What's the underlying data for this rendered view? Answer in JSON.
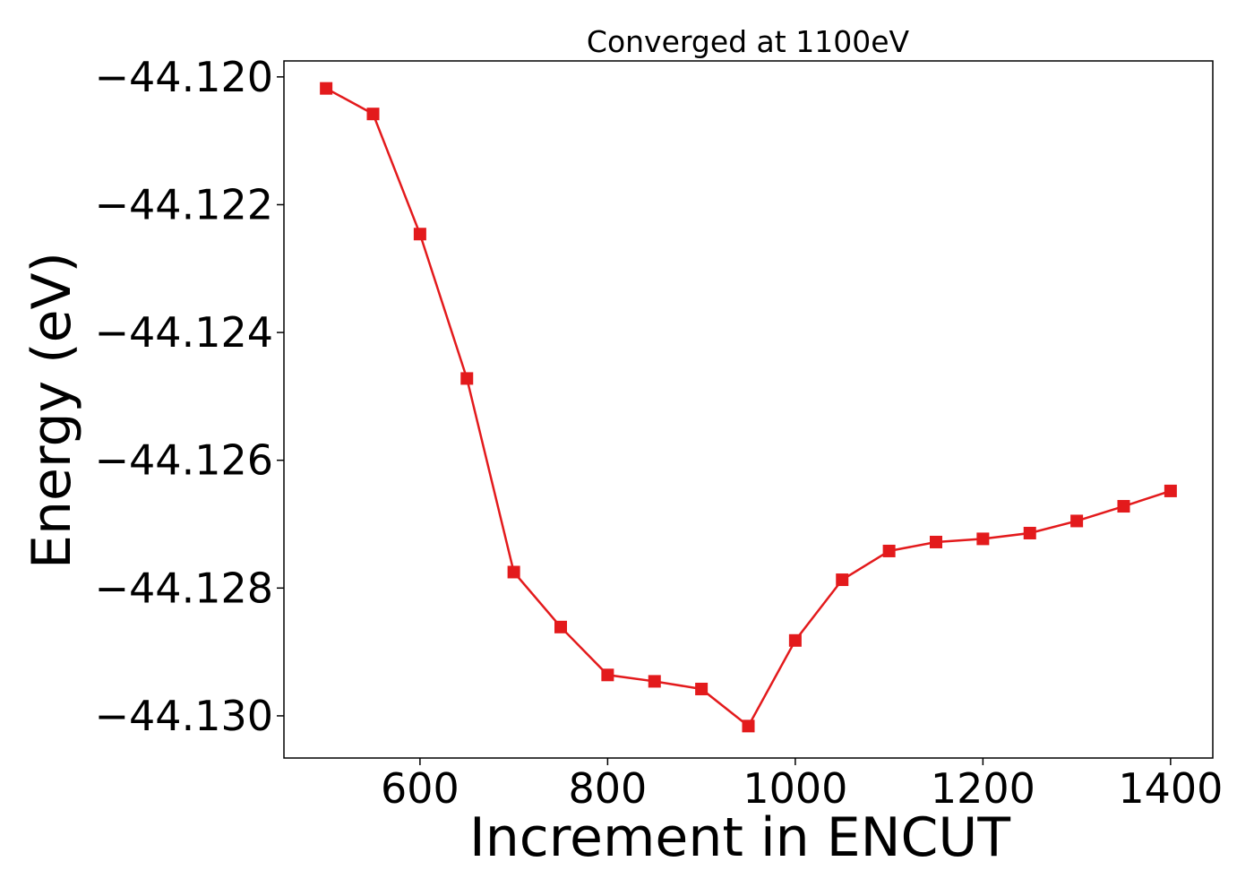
{
  "chart_data": {
    "type": "line",
    "title": "Converged at 1100eV",
    "xlabel": "Increment in ENCUT",
    "ylabel": "Energy (eV)",
    "xlim": [
      455,
      1445
    ],
    "ylim": [
      -44.13066,
      -44.11975
    ],
    "x_ticks": [
      600,
      800,
      1000,
      1200,
      1400
    ],
    "y_ticks": [
      -44.12,
      -44.122,
      -44.124,
      -44.126,
      -44.128,
      -44.13
    ],
    "y_tick_labels": [
      "−44.120",
      "−44.122",
      "−44.124",
      "−44.126",
      "−44.128",
      "−44.130"
    ],
    "grid": false,
    "series": [
      {
        "color": "#e31a1c",
        "marker": "square",
        "x": [
          500,
          550,
          600,
          650,
          700,
          750,
          800,
          850,
          900,
          950,
          1000,
          1050,
          1100,
          1150,
          1200,
          1250,
          1300,
          1350,
          1400
        ],
        "y": [
          -44.12018,
          -44.12058,
          -44.12246,
          -44.12472,
          -44.12775,
          -44.12861,
          -44.12936,
          -44.12946,
          -44.12958,
          -44.13016,
          -44.12882,
          -44.12787,
          -44.12742,
          -44.12728,
          -44.12723,
          -44.12714,
          -44.12695,
          -44.12672,
          -44.12648
        ]
      }
    ]
  }
}
